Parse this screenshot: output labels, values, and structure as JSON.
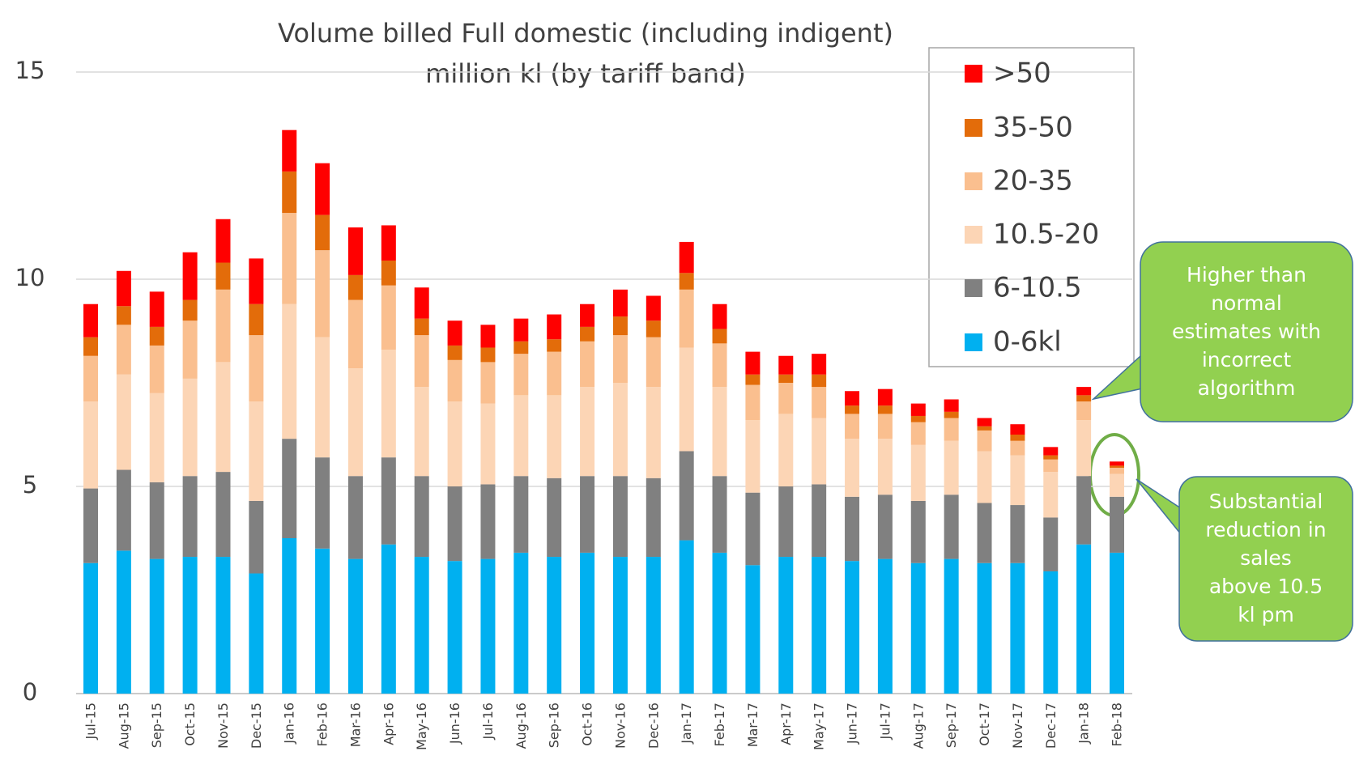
{
  "chart_data": {
    "type": "stacked_bar",
    "title": [
      "Volume billed Full domestic (including indigent)",
      "million kl  (by tariff band)"
    ],
    "categories": [
      "Jul-15",
      "Aug-15",
      "Sep-15",
      "Oct-15",
      "Nov-15",
      "Dec-15",
      "Jan-16",
      "Feb-16",
      "Mar-16",
      "Apr-16",
      "May-16",
      "Jun-16",
      "Jul-16",
      "Aug-16",
      "Sep-16",
      "Oct-16",
      "Nov-16",
      "Dec-16",
      "Jan-17",
      "Feb-17",
      "Mar-17",
      "Apr-17",
      "May-17",
      "Jun-17",
      "Jul-17",
      "Aug-17",
      "Sep-17",
      "Oct-17",
      "Nov-17",
      "Dec-17",
      "Jan-18",
      "Feb-18"
    ],
    "series": [
      {
        "name": "0-6kl",
        "color": "#00b0f0",
        "values": [
          3.15,
          3.45,
          3.25,
          3.3,
          3.3,
          2.9,
          3.75,
          3.5,
          3.25,
          3.6,
          3.3,
          3.2,
          3.25,
          3.4,
          3.3,
          3.4,
          3.3,
          3.3,
          3.7,
          3.4,
          3.1,
          3.3,
          3.3,
          3.2,
          3.25,
          3.15,
          3.25,
          3.15,
          3.15,
          2.95,
          3.6,
          3.4
        ]
      },
      {
        "name": "6-10.5",
        "color": "#808080",
        "values": [
          1.8,
          1.95,
          1.85,
          1.95,
          2.05,
          1.75,
          2.4,
          2.2,
          2.0,
          2.1,
          1.95,
          1.8,
          1.8,
          1.85,
          1.9,
          1.85,
          1.95,
          1.9,
          2.15,
          1.85,
          1.75,
          1.7,
          1.75,
          1.55,
          1.55,
          1.5,
          1.55,
          1.45,
          1.4,
          1.3,
          1.65,
          1.35
        ]
      },
      {
        "name": "10.5-20",
        "color": "#fcd5b5",
        "values": [
          2.1,
          2.3,
          2.15,
          2.35,
          2.65,
          2.4,
          3.25,
          2.9,
          2.6,
          2.6,
          2.15,
          2.05,
          1.95,
          1.95,
          2.0,
          2.15,
          2.25,
          2.2,
          2.5,
          2.15,
          1.75,
          1.75,
          1.6,
          1.4,
          1.35,
          1.35,
          1.3,
          1.25,
          1.2,
          1.1,
          1.35,
          0.55
        ]
      },
      {
        "name": "20-35",
        "color": "#fabf8f",
        "values": [
          1.1,
          1.2,
          1.15,
          1.4,
          1.75,
          1.6,
          2.2,
          2.1,
          1.65,
          1.55,
          1.25,
          1.0,
          1.0,
          1.0,
          1.05,
          1.1,
          1.15,
          1.2,
          1.4,
          1.05,
          0.85,
          0.75,
          0.75,
          0.6,
          0.6,
          0.55,
          0.55,
          0.5,
          0.35,
          0.3,
          0.45,
          0.15
        ]
      },
      {
        "name": "35-50",
        "color": "#e36c0a",
        "values": [
          0.45,
          0.45,
          0.45,
          0.5,
          0.65,
          0.75,
          1.0,
          0.85,
          0.6,
          0.6,
          0.4,
          0.35,
          0.35,
          0.3,
          0.3,
          0.35,
          0.45,
          0.4,
          0.4,
          0.35,
          0.25,
          0.2,
          0.3,
          0.2,
          0.2,
          0.15,
          0.15,
          0.1,
          0.15,
          0.1,
          0.15,
          0.05
        ]
      },
      {
        "name": ">50",
        "color": "#ff0000",
        "values": [
          0.8,
          0.85,
          0.85,
          1.15,
          1.05,
          1.1,
          1.0,
          1.25,
          1.15,
          0.85,
          0.75,
          0.6,
          0.55,
          0.55,
          0.6,
          0.55,
          0.65,
          0.6,
          0.75,
          0.6,
          0.55,
          0.45,
          0.5,
          0.35,
          0.4,
          0.3,
          0.3,
          0.2,
          0.25,
          0.2,
          0.2,
          0.1
        ]
      }
    ],
    "ylim": [
      0,
      15
    ],
    "yticks": [
      0,
      5,
      10,
      15
    ],
    "grid": true,
    "annotations": [
      [
        "Higher than",
        "normal",
        "estimates with",
        "incorrect",
        "algorithm"
      ],
      [
        "Substantial",
        "reduction in",
        "sales",
        "above 10.5",
        "kl pm"
      ]
    ]
  }
}
